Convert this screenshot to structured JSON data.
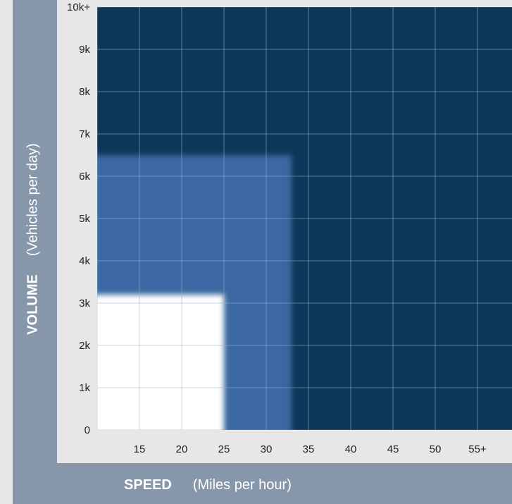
{
  "colors": {
    "background": "#e7e7e7",
    "frame": "#8697ac",
    "high_zone": "#0d3659",
    "mid_zone": "#3a68a2",
    "low_zone": "#ffffff",
    "grid": "#9bb0c6"
  },
  "chart_data": {
    "type": "heatmap",
    "y_axis_label": "VOLUME",
    "y_axis_unit": "(Vehicles per day)",
    "x_axis_label": "SPEED",
    "x_axis_unit": "(Miles per hour)",
    "x_ticks": [
      "15",
      "20",
      "25",
      "30",
      "35",
      "40",
      "45",
      "50",
      "55+"
    ],
    "y_ticks": [
      "0",
      "1k",
      "2k",
      "3k",
      "4k",
      "5k",
      "6k",
      "7k",
      "8k",
      "9k",
      "10k+"
    ],
    "xlim": [
      10,
      60
    ],
    "ylim": [
      0,
      10000
    ],
    "grid": true,
    "zones": [
      {
        "level": "high",
        "speed_range": [
          10,
          60
        ],
        "volume_range": [
          0,
          10000
        ]
      },
      {
        "level": "medium",
        "speed_range": [
          10,
          33
        ],
        "volume_range": [
          0,
          6500
        ]
      },
      {
        "level": "low",
        "speed_range": [
          10,
          25
        ],
        "volume_range": [
          0,
          3200
        ]
      }
    ]
  }
}
